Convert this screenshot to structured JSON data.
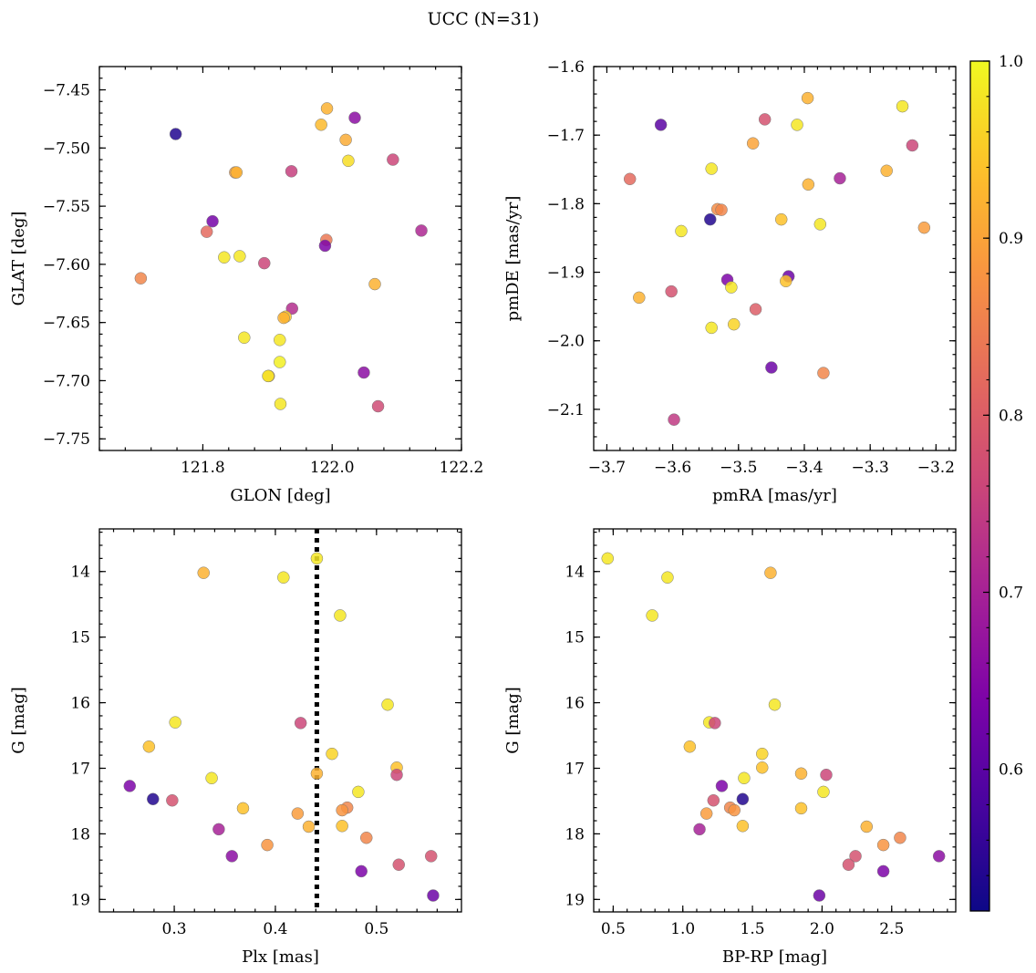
{
  "title": "UCC (N=31)",
  "colorbar": {
    "ticks": [
      "1.0",
      "0.9",
      "0.8",
      "0.7",
      "0.6"
    ],
    "tick_values": [
      1.0,
      0.9,
      0.8,
      0.7,
      0.6
    ],
    "range": [
      0.52,
      1.0
    ],
    "colormap": "plasma"
  },
  "chart_data": [
    {
      "type": "scatter",
      "panel": "top-left",
      "xlabel": "GLON [deg]",
      "ylabel": "GLAT [deg]",
      "xlim": [
        121.64,
        122.2
      ],
      "ylim": [
        -7.76,
        -7.43
      ],
      "yinverted": false,
      "xticks": [
        121.8,
        122.0,
        122.2
      ],
      "xtick_labels": [
        "121.8",
        "122.0",
        "122.2"
      ],
      "yticks": [
        -7.45,
        -7.5,
        -7.55,
        -7.6,
        -7.65,
        -7.7,
        -7.75
      ],
      "ytick_labels": [
        "−7.45",
        "−7.50",
        "−7.55",
        "−7.60",
        "−7.65",
        "−7.70",
        "−7.75"
      ],
      "points": [
        [
          121.758,
          -7.488,
          0.54
        ],
        [
          122.035,
          -7.474,
          0.66
        ],
        [
          121.992,
          -7.466,
          0.92
        ],
        [
          121.983,
          -7.48,
          0.93
        ],
        [
          122.021,
          -7.493,
          0.91
        ],
        [
          122.094,
          -7.51,
          0.76
        ],
        [
          122.025,
          -7.511,
          0.97
        ],
        [
          121.937,
          -7.52,
          0.75
        ],
        [
          121.85,
          -7.521,
          0.89
        ],
        [
          121.852,
          -7.521,
          0.92
        ],
        [
          121.815,
          -7.563,
          0.63
        ],
        [
          121.806,
          -7.572,
          0.82
        ],
        [
          122.138,
          -7.571,
          0.71
        ],
        [
          121.991,
          -7.579,
          0.84
        ],
        [
          121.989,
          -7.584,
          0.64
        ],
        [
          121.833,
          -7.594,
          0.98
        ],
        [
          121.857,
          -7.593,
          0.98
        ],
        [
          121.895,
          -7.599,
          0.76
        ],
        [
          121.704,
          -7.612,
          0.86
        ],
        [
          122.066,
          -7.617,
          0.92
        ],
        [
          121.938,
          -7.638,
          0.72
        ],
        [
          121.928,
          -7.645,
          0.95
        ],
        [
          121.925,
          -7.646,
          0.92
        ],
        [
          121.864,
          -7.663,
          0.98
        ],
        [
          121.919,
          -7.665,
          0.98
        ],
        [
          121.919,
          -7.684,
          0.99
        ],
        [
          121.902,
          -7.696,
          0.92
        ],
        [
          121.901,
          -7.696,
          0.98
        ],
        [
          122.049,
          -7.693,
          0.66
        ],
        [
          121.92,
          -7.72,
          0.98
        ],
        [
          122.071,
          -7.722,
          0.77
        ]
      ]
    },
    {
      "type": "scatter",
      "panel": "top-right",
      "xlabel": "pmRA [mas/yr]",
      "ylabel": "pmDE [mas/yr]",
      "xlim": [
        -3.72,
        -3.17
      ],
      "ylim": [
        -2.16,
        -1.6
      ],
      "yinverted": false,
      "xticks": [
        -3.7,
        -3.6,
        -3.5,
        -3.4,
        -3.3,
        -3.2
      ],
      "xtick_labels": [
        "−3.7",
        "−3.6",
        "−3.5",
        "−3.4",
        "−3.3",
        "−3.2"
      ],
      "yticks": [
        -1.6,
        -1.7,
        -1.8,
        -1.9,
        -2.0,
        -2.1
      ],
      "ytick_labels": [
        "−1.6",
        "−1.7",
        "−1.8",
        "−1.9",
        "−2.0",
        "−2.1"
      ],
      "points": [
        [
          -3.618,
          -1.685,
          0.6
        ],
        [
          -3.665,
          -1.764,
          0.82
        ],
        [
          -3.395,
          -1.646,
          0.92
        ],
        [
          -3.251,
          -1.658,
          0.98
        ],
        [
          -3.46,
          -1.677,
          0.78
        ],
        [
          -3.411,
          -1.685,
          0.98
        ],
        [
          -3.478,
          -1.712,
          0.9
        ],
        [
          -3.236,
          -1.715,
          0.76
        ],
        [
          -3.541,
          -1.749,
          0.98
        ],
        [
          -3.275,
          -1.752,
          0.92
        ],
        [
          -3.346,
          -1.763,
          0.7
        ],
        [
          -3.394,
          -1.772,
          0.92
        ],
        [
          -3.532,
          -1.808,
          0.87
        ],
        [
          -3.526,
          -1.809,
          0.86
        ],
        [
          -3.543,
          -1.823,
          0.54
        ],
        [
          -3.435,
          -1.823,
          0.94
        ],
        [
          -3.376,
          -1.83,
          0.98
        ],
        [
          -3.587,
          -1.84,
          0.98
        ],
        [
          -3.218,
          -1.835,
          0.89
        ],
        [
          -3.424,
          -1.906,
          0.62
        ],
        [
          -3.517,
          -1.911,
          0.64
        ],
        [
          -3.428,
          -1.913,
          0.94
        ],
        [
          -3.511,
          -1.922,
          0.98
        ],
        [
          -3.602,
          -1.928,
          0.78
        ],
        [
          -3.651,
          -1.937,
          0.92
        ],
        [
          -3.474,
          -1.954,
          0.8
        ],
        [
          -3.507,
          -1.976,
          0.96
        ],
        [
          -3.541,
          -1.981,
          0.98
        ],
        [
          -3.45,
          -2.039,
          0.62
        ],
        [
          -3.371,
          -2.047,
          0.86
        ],
        [
          -3.598,
          -2.115,
          0.74
        ]
      ]
    },
    {
      "type": "scatter",
      "panel": "bottom-left",
      "xlabel": "Plx [mas]",
      "ylabel": "G [mag]",
      "xlim": [
        0.226,
        0.584
      ],
      "ylim": [
        19.19,
        13.35
      ],
      "yinverted": true,
      "xticks": [
        0.3,
        0.4,
        0.5
      ],
      "xtick_labels": [
        "0.3",
        "0.4",
        "0.5"
      ],
      "yticks": [
        14,
        15,
        16,
        17,
        18,
        19
      ],
      "ytick_labels": [
        "14",
        "15",
        "16",
        "17",
        "18",
        "19"
      ],
      "vline": {
        "x": 0.441,
        "style": "dotted"
      },
      "points": [
        [
          0.441,
          13.8,
          0.98
        ],
        [
          0.329,
          14.02,
          0.92
        ],
        [
          0.408,
          14.09,
          0.98
        ],
        [
          0.464,
          14.67,
          0.98
        ],
        [
          0.511,
          16.03,
          0.98
        ],
        [
          0.301,
          16.3,
          0.98
        ],
        [
          0.425,
          16.31,
          0.76
        ],
        [
          0.275,
          16.67,
          0.94
        ],
        [
          0.456,
          16.78,
          0.96
        ],
        [
          0.52,
          16.99,
          0.94
        ],
        [
          0.441,
          17.08,
          0.92
        ],
        [
          0.52,
          17.1,
          0.76
        ],
        [
          0.337,
          17.15,
          0.98
        ],
        [
          0.256,
          17.27,
          0.64
        ],
        [
          0.482,
          17.36,
          0.98
        ],
        [
          0.279,
          17.47,
          0.54
        ],
        [
          0.298,
          17.49,
          0.78
        ],
        [
          0.368,
          17.61,
          0.94
        ],
        [
          0.471,
          17.6,
          0.86
        ],
        [
          0.466,
          17.64,
          0.88
        ],
        [
          0.422,
          17.69,
          0.89
        ],
        [
          0.466,
          17.88,
          0.94
        ],
        [
          0.433,
          17.89,
          0.92
        ],
        [
          0.344,
          17.93,
          0.7
        ],
        [
          0.49,
          18.06,
          0.86
        ],
        [
          0.392,
          18.17,
          0.88
        ],
        [
          0.357,
          18.34,
          0.66
        ],
        [
          0.554,
          18.34,
          0.78
        ],
        [
          0.522,
          18.47,
          0.78
        ],
        [
          0.485,
          18.57,
          0.64
        ],
        [
          0.556,
          18.94,
          0.62
        ]
      ]
    },
    {
      "type": "scatter",
      "panel": "bottom-right",
      "xlabel": "BP-RP [mag]",
      "ylabel": "G [mag]",
      "xlim": [
        0.36,
        2.96
      ],
      "ylim": [
        19.19,
        13.35
      ],
      "yinverted": true,
      "xticks": [
        0.5,
        1.0,
        1.5,
        2.0,
        2.5
      ],
      "xtick_labels": [
        "0.5",
        "1.0",
        "1.5",
        "2.0",
        "2.5"
      ],
      "yticks": [
        14,
        15,
        16,
        17,
        18,
        19
      ],
      "ytick_labels": [
        "14",
        "15",
        "16",
        "17",
        "18",
        "19"
      ],
      "points": [
        [
          0.46,
          13.8,
          0.98
        ],
        [
          0.89,
          14.09,
          0.98
        ],
        [
          1.63,
          14.02,
          0.92
        ],
        [
          0.78,
          14.67,
          0.98
        ],
        [
          1.66,
          16.03,
          0.98
        ],
        [
          1.19,
          16.3,
          0.98
        ],
        [
          1.23,
          16.31,
          0.76
        ],
        [
          1.05,
          16.67,
          0.94
        ],
        [
          1.57,
          16.78,
          0.96
        ],
        [
          1.57,
          16.99,
          0.94
        ],
        [
          1.85,
          17.08,
          0.92
        ],
        [
          2.03,
          17.1,
          0.76
        ],
        [
          1.44,
          17.15,
          0.98
        ],
        [
          1.28,
          17.27,
          0.64
        ],
        [
          2.01,
          17.36,
          0.98
        ],
        [
          1.43,
          17.47,
          0.54
        ],
        [
          1.22,
          17.49,
          0.78
        ],
        [
          1.85,
          17.61,
          0.94
        ],
        [
          1.34,
          17.6,
          0.86
        ],
        [
          1.37,
          17.64,
          0.88
        ],
        [
          1.17,
          17.69,
          0.89
        ],
        [
          1.43,
          17.88,
          0.94
        ],
        [
          2.32,
          17.89,
          0.92
        ],
        [
          1.12,
          17.93,
          0.7
        ],
        [
          2.56,
          18.06,
          0.86
        ],
        [
          2.44,
          18.17,
          0.88
        ],
        [
          2.24,
          18.34,
          0.78
        ],
        [
          2.84,
          18.34,
          0.66
        ],
        [
          2.19,
          18.47,
          0.78
        ],
        [
          2.44,
          18.57,
          0.64
        ],
        [
          1.98,
          18.94,
          0.62
        ]
      ]
    }
  ]
}
